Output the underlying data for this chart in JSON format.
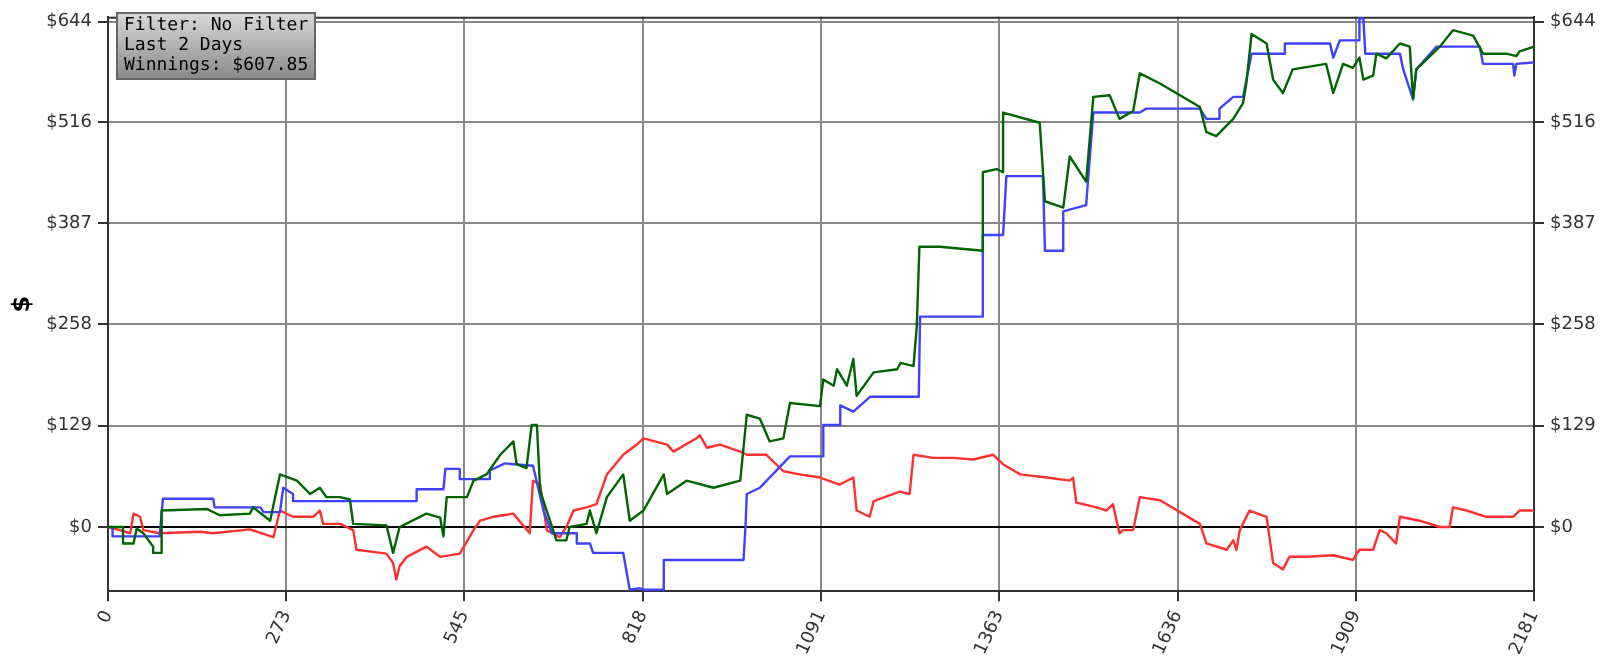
{
  "chart_data": {
    "type": "line",
    "ylabel": "$",
    "xlim": [
      0,
      2181
    ],
    "xticks": [
      0,
      273,
      545,
      818,
      1091,
      1363,
      1636,
      1909,
      2181
    ],
    "ylim": [
      -82,
      650
    ],
    "yticks": [
      {
        "value": 0,
        "label": "$0"
      },
      {
        "value": 129,
        "label": "$129"
      },
      {
        "value": 258,
        "label": "$258"
      },
      {
        "value": 387,
        "label": "$387"
      },
      {
        "value": 516,
        "label": "$516"
      },
      {
        "value": 644,
        "label": "$644"
      }
    ],
    "y2lim": [
      -82,
      650
    ],
    "y2ticks": [
      {
        "value": 0,
        "label": "$0"
      },
      {
        "value": 129,
        "label": "$129"
      },
      {
        "value": 258,
        "label": "$258"
      },
      {
        "value": 387,
        "label": "$387"
      },
      {
        "value": 516,
        "label": "$516"
      },
      {
        "value": 644,
        "label": "$644"
      }
    ],
    "grid": true,
    "legend": false,
    "marker": "none",
    "line_style": "solid",
    "annotations": [
      "Filter: No Filter",
      "Last 2 Days",
      "Winnings: $607.85"
    ],
    "ref_lines": [
      {
        "axis": "y",
        "value": 0,
        "color": "#000000"
      }
    ],
    "series": [
      {
        "color": "#ff3030",
        "x": [
          0,
          18,
          34,
          39,
          49,
          54,
          79,
          141,
          161,
          217,
          253,
          263,
          283,
          314,
          324,
          329,
          355,
          375,
          380,
          426,
          436,
          441,
          446,
          457,
          487,
          508,
          538,
          559,
          569,
          589,
          620,
          645,
          650,
          661,
          671,
          691,
          701,
          712,
          732,
          747,
          763,
          788,
          809,
          819,
          855,
          865,
          900,
          905,
          916,
          936,
          967,
          977,
          1007,
          1033,
          1058,
          1089,
          1119,
          1140,
          1145,
          1165,
          1171,
          1211,
          1226,
          1232,
          1262,
          1293,
          1323,
          1354,
          1369,
          1395,
          1436,
          1471,
          1476,
          1481,
          1512,
          1527,
          1537,
          1547,
          1552,
          1568,
          1578,
          1609,
          1670,
          1680,
          1711,
          1721,
          1726,
          1731,
          1746,
          1772,
          1782,
          1797,
          1807,
          1833,
          1874,
          1904,
          1914,
          1935,
          1945,
          1955,
          1970,
          1976,
          2006,
          2037,
          2052,
          2057,
          2078,
          2108,
          2149,
          2159,
          2181
        ],
        "values": [
          0,
          -4,
          -8,
          17,
          13,
          -4,
          -8,
          -6,
          -8,
          -3,
          -13,
          21,
          13,
          13,
          21,
          4,
          4,
          -4,
          -29,
          -34,
          -46,
          -67,
          -50,
          -38,
          -25,
          -38,
          -34,
          -4,
          8,
          13,
          17,
          -8,
          59,
          54,
          -4,
          -13,
          0,
          21,
          25,
          29,
          67,
          92,
          105,
          113,
          105,
          96,
          113,
          117,
          101,
          105,
          96,
          92,
          92,
          71,
          67,
          63,
          54,
          63,
          21,
          13,
          33,
          45,
          42,
          92,
          88,
          88,
          86,
          92,
          80,
          67,
          63,
          59,
          63,
          31,
          25,
          21,
          29,
          -8,
          -4,
          -4,
          38,
          34,
          4,
          -21,
          -29,
          -17,
          -29,
          -4,
          21,
          13,
          -46,
          -54,
          -38,
          -38,
          -36,
          -42,
          -29,
          -29,
          -4,
          -8,
          -21,
          13,
          8,
          0,
          0,
          25,
          21,
          13,
          13,
          21,
          21
        ]
      },
      {
        "color": "#4040ff",
        "x": [
          0,
          7,
          7,
          79,
          84,
          161,
          163,
          233,
          238,
          263,
          268,
          283,
          283,
          472,
          472,
          513,
          516,
          538,
          538,
          584,
          584,
          607,
          650,
          666,
          679,
          717,
          717,
          737,
          742,
          788,
          798,
          814,
          819,
          850,
          850,
          972,
          975,
          977,
          997,
          1043,
          1094,
          1094,
          1120,
          1120,
          1140,
          1166,
          1240,
          1242,
          1338,
          1338,
          1369,
          1374,
          1430,
          1433,
          1461,
          1461,
          1496,
          1507,
          1578,
          1588,
          1670,
          1680,
          1700,
          1700,
          1721,
          1736,
          1749,
          1800,
          1800,
          1869,
          1874,
          1884,
          1914,
          1914,
          1920,
          1923,
          1976,
          1981,
          1996,
          2001,
          2032,
          2098,
          2103,
          2149,
          2151,
          2154,
          2181
        ],
        "values": [
          0,
          0,
          -12,
          -12,
          36,
          36,
          25,
          25,
          19,
          19,
          50,
          42,
          33,
          33,
          48,
          48,
          74,
          74,
          61,
          61,
          72,
          81,
          78,
          21,
          -8,
          -8,
          -21,
          -21,
          -33,
          -33,
          -80,
          -78,
          -80,
          -80,
          -42,
          -42,
          0,
          42,
          50,
          90,
          90,
          130,
          130,
          155,
          147,
          166,
          166,
          268,
          268,
          372,
          372,
          447,
          447,
          352,
          352,
          402,
          410,
          528,
          528,
          533,
          533,
          520,
          520,
          533,
          548,
          548,
          603,
          603,
          616,
          616,
          598,
          620,
          620,
          648,
          648,
          603,
          603,
          583,
          545,
          583,
          612,
          612,
          590,
          590,
          575,
          590,
          592
        ]
      },
      {
        "color": "#006400",
        "x": [
          0,
          23,
          23,
          39,
          44,
          54,
          69,
          69,
          80,
          82,
          151,
          171,
          217,
          222,
          248,
          263,
          289,
          309,
          324,
          334,
          355,
          370,
          375,
          426,
          436,
          446,
          487,
          508,
          513,
          518,
          549,
          559,
          579,
          600,
          620,
          625,
          640,
          648,
          656,
          661,
          676,
          686,
          701,
          706,
          732,
          737,
          747,
          763,
          788,
          798,
          819,
          850,
          855,
          885,
          926,
          967,
          977,
          997,
          1012,
          1033,
          1043,
          1089,
          1094,
          1110,
          1115,
          1130,
          1140,
          1145,
          1171,
          1207,
          1212,
          1232,
          1237,
          1241,
          1272,
          1338,
          1338,
          1359,
          1369,
          1369,
          1425,
          1433,
          1461,
          1471,
          1496,
          1507,
          1532,
          1547,
          1568,
          1578,
          1609,
          1670,
          1680,
          1695,
          1721,
          1736,
          1741,
          1749,
          1772,
          1782,
          1797,
          1812,
          1863,
          1874,
          1889,
          1904,
          1914,
          1920,
          1935,
          1940,
          1955,
          1976,
          1991,
          1996,
          2001,
          2037,
          2057,
          2088,
          2103,
          2139,
          2154,
          2159,
          2181
        ],
        "values": [
          0,
          0,
          -21,
          -21,
          -2,
          -8,
          -25,
          -33,
          -33,
          21,
          23,
          15,
          17,
          25,
          8,
          67,
          59,
          42,
          50,
          38,
          38,
          35,
          4,
          2,
          -33,
          0,
          17,
          12,
          -12,
          38,
          38,
          59,
          67,
          92,
          109,
          80,
          75,
          130,
          130,
          46,
          8,
          -17,
          -17,
          0,
          4,
          21,
          -8,
          38,
          67,
          8,
          21,
          67,
          42,
          59,
          50,
          59,
          143,
          138,
          109,
          113,
          158,
          154,
          188,
          180,
          201,
          180,
          214,
          167,
          197,
          201,
          209,
          205,
          256,
          357,
          357,
          352,
          452,
          456,
          452,
          528,
          515,
          415,
          407,
          472,
          440,
          548,
          550,
          520,
          530,
          578,
          565,
          535,
          503,
          498,
          520,
          540,
          565,
          628,
          616,
          570,
          553,
          583,
          590,
          553,
          590,
          585,
          598,
          570,
          575,
          603,
          597,
          616,
          612,
          545,
          583,
          612,
          633,
          626,
          603,
          603,
          600,
          606,
          612
        ]
      }
    ]
  }
}
